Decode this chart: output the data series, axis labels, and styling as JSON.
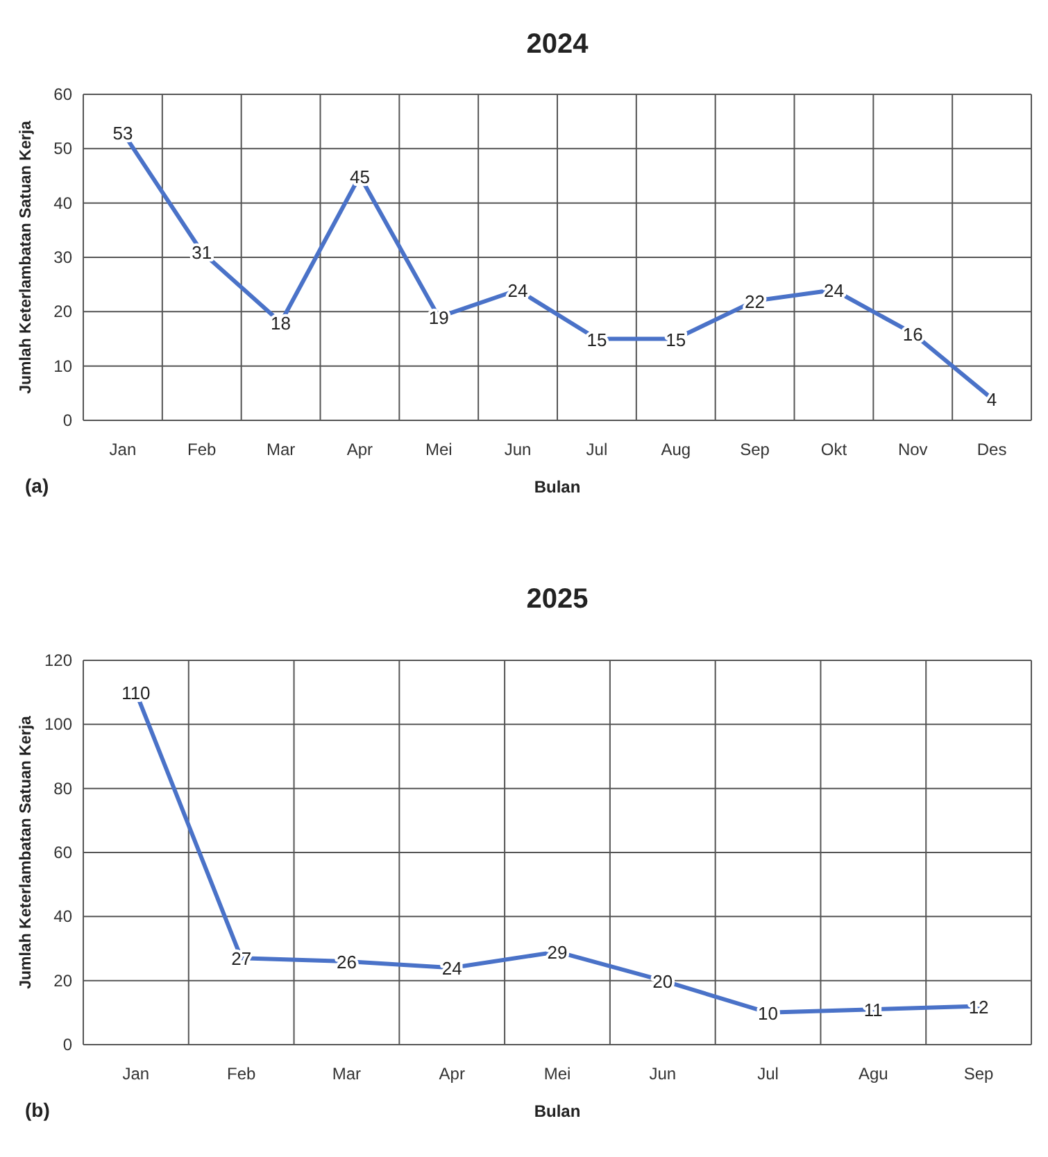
{
  "chart_data": [
    {
      "type": "line",
      "title": "2024",
      "xlabel": "Bulan",
      "ylabel": "Jumlah Keterlambatan Satuan Kerja",
      "categories": [
        "Jan",
        "Feb",
        "Mar",
        "Apr",
        "Mei",
        "Jun",
        "Jul",
        "Aug",
        "Sep",
        "Okt",
        "Nov",
        "Des"
      ],
      "series": [
        {
          "color": "#4a72c8",
          "values": [
            53,
            31,
            18,
            45,
            19,
            24,
            15,
            15,
            22,
            24,
            16,
            4
          ]
        }
      ],
      "ylim": [
        0,
        60
      ],
      "yticks": [
        0,
        10,
        20,
        30,
        40,
        50,
        60
      ],
      "grid": true,
      "data_labels": true,
      "marker": "none",
      "line_style": "solid",
      "annotations": [
        "(a)"
      ]
    },
    {
      "type": "line",
      "title": "2025",
      "xlabel": "Bulan",
      "ylabel": "Jumlah Keterlambatan Satuan Kerja",
      "categories": [
        "Jan",
        "Feb",
        "Mar",
        "Apr",
        "Mei",
        "Jun",
        "Jul",
        "Agu",
        "Sep"
      ],
      "series": [
        {
          "color": "#4a72c8",
          "values": [
            110,
            27,
            26,
            24,
            29,
            20,
            10,
            11,
            12
          ]
        }
      ],
      "ylim": [
        0,
        120
      ],
      "yticks": [
        0,
        20,
        40,
        60,
        80,
        100,
        120
      ],
      "grid": true,
      "data_labels": true,
      "marker": "none",
      "line_style": "solid",
      "annotations": [
        "(b)"
      ]
    }
  ]
}
